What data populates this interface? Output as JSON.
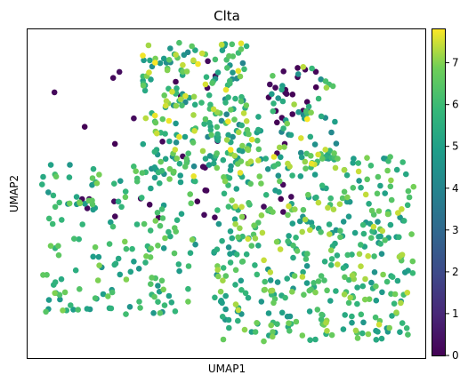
{
  "chart_data": {
    "type": "scatter",
    "title": "Clta",
    "xlabel": "UMAP1",
    "ylabel": "UMAP2",
    "x_ticks_shown": false,
    "y_ticks_shown": false,
    "grid": false,
    "colorbar": {
      "colormap": "viridis",
      "range": [
        0,
        7.8
      ],
      "ticks": [
        "0",
        "1",
        "2",
        "3",
        "4",
        "5",
        "6",
        "7"
      ],
      "tick_values": [
        0,
        1,
        2,
        3,
        4,
        5,
        6,
        7
      ]
    },
    "clusters": [
      {
        "region": "upper-middle",
        "x_range": [
          160,
          280
        ],
        "y_range": [
          47,
          200
        ],
        "value_range": [
          4,
          7.8
        ],
        "count": 220
      },
      {
        "region": "right-lobe",
        "x_range": [
          240,
          465
        ],
        "y_range": [
          175,
          385
        ],
        "value_range": [
          4.5,
          7.5
        ],
        "count": 420
      },
      {
        "region": "left-lobe",
        "x_range": [
          47,
          220
        ],
        "y_range": [
          185,
          355
        ],
        "value_range": [
          4.5,
          7
        ],
        "count": 170
      },
      {
        "region": "upper-right",
        "x_range": [
          280,
          380
        ],
        "y_range": [
          75,
          190
        ],
        "value_range": [
          4,
          7.8
        ],
        "count": 70
      },
      {
        "region": "low-expression-top",
        "x_range": [
          300,
          360
        ],
        "y_range": [
          75,
          140
        ],
        "value_range": [
          0,
          0.3
        ],
        "count": 18
      },
      {
        "region": "low-expression-scattered",
        "x_range": [
          60,
          330
        ],
        "y_range": [
          60,
          250
        ],
        "value_range": [
          0,
          0.3
        ],
        "count": 40
      }
    ]
  }
}
